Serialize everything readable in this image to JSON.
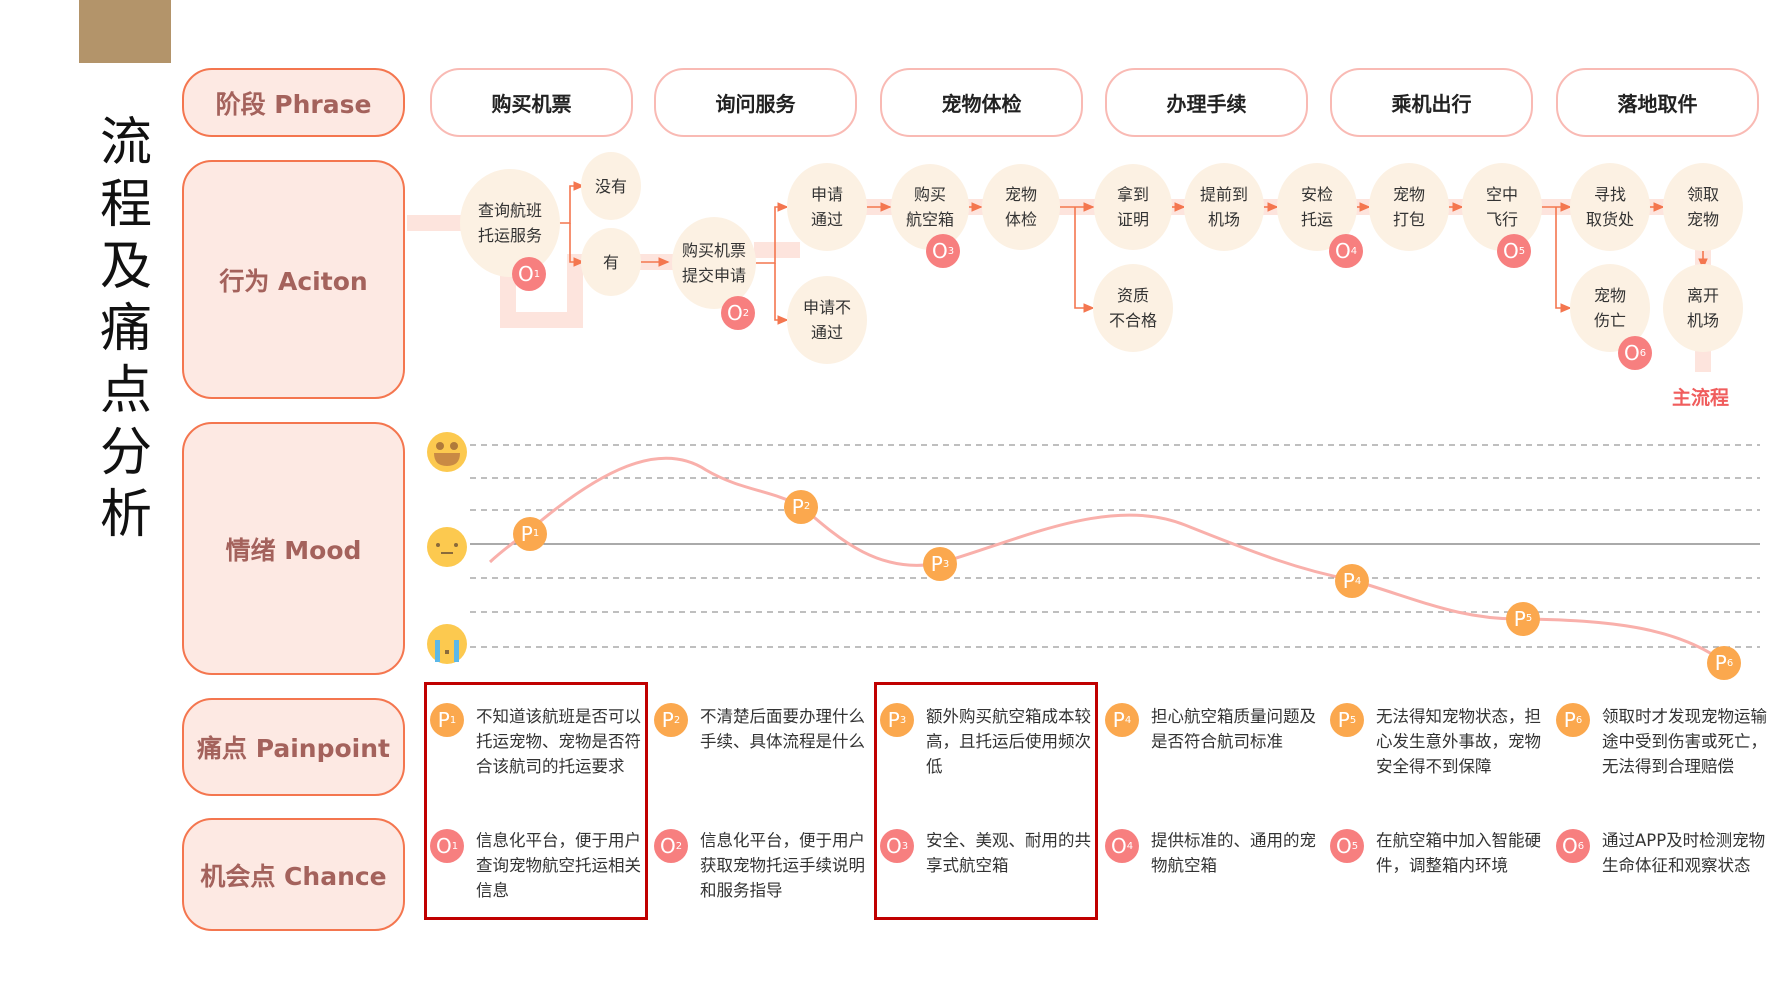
{
  "title": "流程及痛点分析",
  "row_labels": {
    "phrase": "阶段 Phrase",
    "action": "行为 Aciton",
    "mood": "情绪 Mood",
    "painpoint": "痛点 Painpoint",
    "chance": "机会点 Chance"
  },
  "stages": [
    "购买机票",
    "询问服务",
    "宠物体检",
    "办理手续",
    "乘机出行",
    "落地取件"
  ],
  "actions": [
    "查询航班\n托运服务",
    "没有",
    "有",
    "购买机票\n提交申请",
    "申请\n通过",
    "申请不\n通过",
    "购买\n航空箱",
    "宠物\n体检",
    "拿到\n证明",
    "资质\n不合格",
    "提前到\n机场",
    "安检\n托运",
    "宠物\n打包",
    "空中\n飞行",
    "寻找\n取货处",
    "宠物\n伤亡",
    "领取\n宠物",
    "离开\n机场"
  ],
  "main_flow_label": "主流程",
  "mood_levels": {
    "happy": "smile-emoji",
    "neutral": "neutral-emoji",
    "sad": "crying-emoji"
  },
  "mood_points": [
    {
      "label": "P",
      "num": "1",
      "level": 0.3
    },
    {
      "label": "P",
      "num": "2",
      "level": 1.1
    },
    {
      "label": "P",
      "num": "3",
      "level": -0.6
    },
    {
      "label": "P",
      "num": "4",
      "level": -1.1
    },
    {
      "label": "P",
      "num": "5",
      "level": -2.2
    },
    {
      "label": "P",
      "num": "6",
      "level": -3.5
    }
  ],
  "painpoints": [
    "不知道该航班是否可以托运宠物、宠物是否符合该航司的托运要求",
    "不清楚后面要办理什么手续、具体流程是什么",
    "额外购买航空箱成本较高，且托运后使用频次低",
    "担心航空箱质量问题及是否符合航司标准",
    "无法得知宠物状态，担心发生意外事故，宠物安全得不到保障",
    "领取时才发现宠物运输途中受到伤害或死亡，无法得到合理赔偿"
  ],
  "chances": [
    "信息化平台，便于用户查询宠物航空托运相关信息",
    "信息化平台，便于用户获取宠物托运手续说明和服务指导",
    "安全、美观、耐用的共享式航空箱",
    "提供标准的、通用的宠物航空箱",
    "在航空箱中加入智能硬件，调整箱内环境",
    "通过APP及时检测宠物生命体征和观察状态"
  ],
  "badge_letters": {
    "painpoint": "P",
    "chance": "O",
    "numbers": [
      "1",
      "2",
      "3",
      "4",
      "5",
      "6"
    ]
  },
  "highlighted_columns": [
    1,
    3
  ],
  "colors": {
    "accent": "#f4764f",
    "label_fill": "#fde9e3",
    "label_text": "#a4625c",
    "node_fill": "#fcf1e3",
    "chance_badge": "#f77f7f",
    "pain_badge": "#fba84e",
    "curve": "#f9b0ab",
    "highlight": "#c00000",
    "brand": "#b3946a"
  }
}
